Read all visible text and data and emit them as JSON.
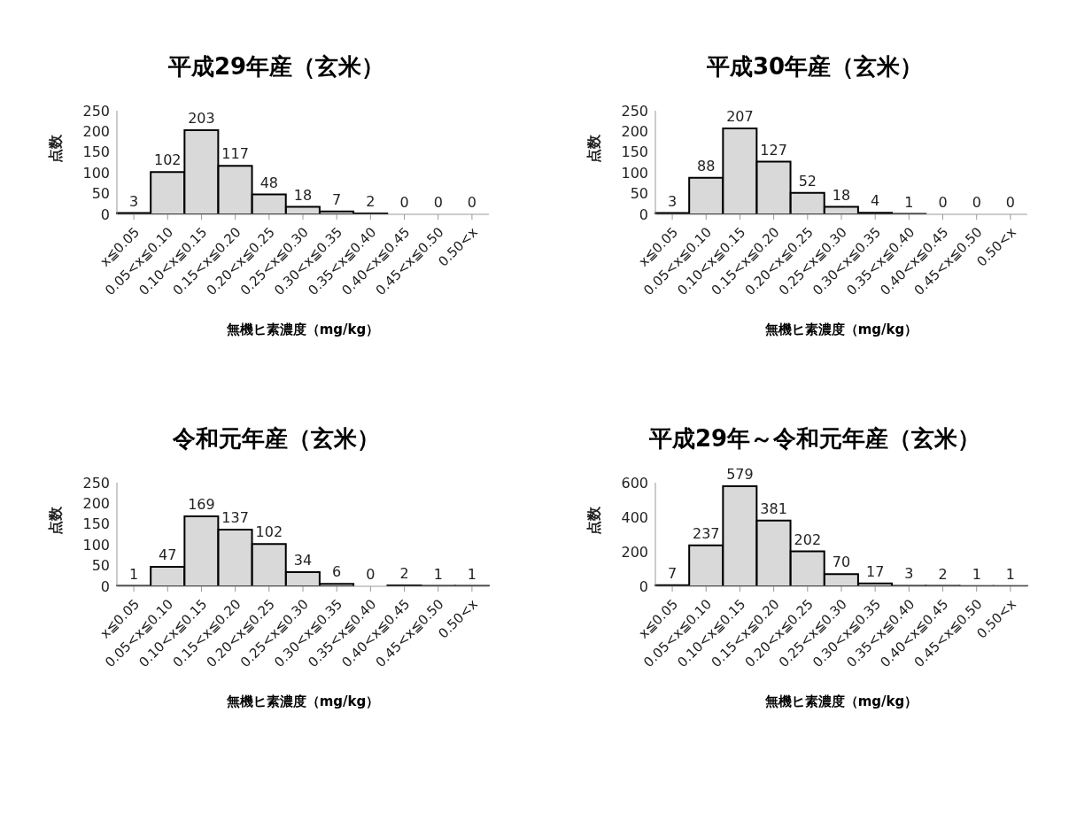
{
  "chart_data": [
    {
      "type": "bar",
      "title": "平成29年産（玄米）",
      "xlabel": "無機ヒ素濃度（mg/kg）",
      "ylabel": "点数",
      "categories": [
        "x≦0.05",
        "0.05<x≦0.10",
        "0.10<x≦0.15",
        "0.15<x≦0.20",
        "0.20<x≦0.25",
        "0.25<x≦0.30",
        "0.30<x≦0.35",
        "0.35<x≦0.40",
        "0.40<x≦0.45",
        "0.45<x≦0.50",
        "0.50<x"
      ],
      "values": [
        3,
        102,
        203,
        117,
        48,
        18,
        7,
        2,
        0,
        0,
        0
      ],
      "color": "#d9d9d9",
      "ylim": [
        0,
        250
      ],
      "yticks": [
        0,
        50,
        100,
        150,
        200,
        250
      ],
      "data_labels": true
    },
    {
      "type": "bar",
      "title": "平成30年産（玄米）",
      "xlabel": "無機ヒ素濃度（mg/kg）",
      "ylabel": "点数",
      "categories": [
        "x≦0.05",
        "0.05<x≦0.10",
        "0.10<x≦0.15",
        "0.15<x≦0.20",
        "0.20<x≦0.25",
        "0.25<x≦0.30",
        "0.30<x≦0.35",
        "0.35<x≦0.40",
        "0.40<x≦0.45",
        "0.45<x≦0.50",
        "0.50<x"
      ],
      "values": [
        3,
        88,
        207,
        127,
        52,
        18,
        4,
        1,
        0,
        0,
        0
      ],
      "color": "#d9d9d9",
      "ylim": [
        0,
        250
      ],
      "yticks": [
        0,
        50,
        100,
        150,
        200,
        250
      ],
      "data_labels": true
    },
    {
      "type": "bar",
      "title": "令和元年産（玄米）",
      "xlabel": "無機ヒ素濃度（mg/kg）",
      "ylabel": "点数",
      "categories": [
        "x≦0.05",
        "0.05<x≦0.10",
        "0.10<x≦0.15",
        "0.15<x≦0.20",
        "0.20<x≦0.25",
        "0.25<x≦0.30",
        "0.30<x≦0.35",
        "0.35<x≦0.40",
        "0.40<x≦0.45",
        "0.45<x≦0.50",
        "0.50<x"
      ],
      "values": [
        1,
        47,
        169,
        137,
        102,
        34,
        6,
        0,
        2,
        1,
        1
      ],
      "color": "#d9d9d9",
      "ylim": [
        0,
        250
      ],
      "yticks": [
        0,
        50,
        100,
        150,
        200,
        250
      ],
      "data_labels": true
    },
    {
      "type": "bar",
      "title": "平成29年～令和元年産（玄米）",
      "xlabel": "無機ヒ素濃度（mg/kg）",
      "ylabel": "点数",
      "categories": [
        "x≦0.05",
        "0.05<x≦0.10",
        "0.10<x≦0.15",
        "0.15<x≦0.20",
        "0.20<x≦0.25",
        "0.25<x≦0.30",
        "0.30<x≦0.35",
        "0.35<x≦0.40",
        "0.40<x≦0.45",
        "0.45<x≦0.50",
        "0.50<x"
      ],
      "values": [
        7,
        237,
        579,
        381,
        202,
        70,
        17,
        3,
        2,
        1,
        1
      ],
      "color": "#d9d9d9",
      "ylim": [
        0,
        600
      ],
      "yticks": [
        0,
        200,
        400,
        600
      ],
      "data_labels": true
    }
  ]
}
